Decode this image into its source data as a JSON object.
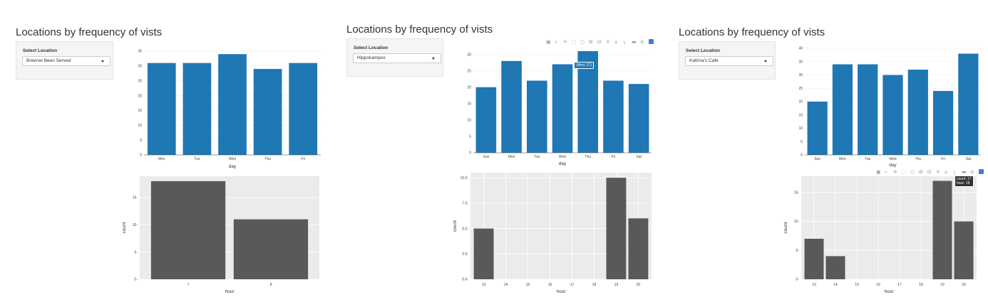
{
  "panels": [
    {
      "title": "Locations by frequency of vists",
      "select_label": "Select Location",
      "select_value": "Brew've Been Served"
    },
    {
      "title": "Locations by frequency of vists",
      "select_label": "Select Location",
      "select_value": "Hippokampos",
      "tooltip": "(Wed, 27)"
    },
    {
      "title": "Locations by frequency of vists",
      "select_label": "Select Location",
      "select_value": "Katrina's Cafe",
      "tooltip_line1": "count: 17",
      "tooltip_line2": "hour: 19"
    }
  ],
  "modebar_icons": [
    "camera-icon",
    "zoom-icon",
    "pan-icon",
    "box-select-icon",
    "lasso-icon",
    "zoom-in-icon",
    "zoom-out-icon",
    "autoscale-icon",
    "reset-axes-icon",
    "spike-lines-icon",
    "hover-closest-icon",
    "hover-compare-icon",
    "plotly-logo-icon"
  ],
  "colors": {
    "bar_blue": "#1f77b4",
    "bar_gray": "#595959",
    "panel_bg": "#ebebeb"
  },
  "chart_data": [
    {
      "type": "bar",
      "categories": [
        "Mon",
        "Tue",
        "Wed",
        "Thu",
        "Fri"
      ],
      "values": [
        31,
        31,
        34,
        29,
        31
      ],
      "xlabel": "day",
      "ylabel": "",
      "ylim": [
        0,
        35
      ],
      "yticks": [
        0,
        5,
        10,
        15,
        20,
        25,
        30,
        35
      ],
      "grid": true
    },
    {
      "type": "bar",
      "categories": [
        "7",
        "8"
      ],
      "values": [
        18,
        11
      ],
      "xlabel": "hour",
      "ylabel": "count",
      "ylim": [
        0,
        18.9
      ],
      "yticks": [
        0,
        5,
        10,
        15
      ],
      "grid": true
    },
    {
      "type": "bar",
      "categories": [
        "Sun",
        "Mon",
        "Tue",
        "Wed",
        "Thu",
        "Fri",
        "Sat"
      ],
      "values": [
        20,
        28,
        22,
        27,
        31,
        22,
        21
      ],
      "xlabel": "day",
      "ylabel": "",
      "ylim": [
        0,
        31
      ],
      "yticks": [
        0,
        5,
        10,
        15,
        20,
        25,
        30
      ],
      "grid": true
    },
    {
      "type": "bar",
      "x": [
        13,
        19,
        20
      ],
      "values": [
        5,
        10,
        6
      ],
      "xticks": [
        13,
        14,
        15,
        16,
        17,
        18,
        19,
        20
      ],
      "xlabel": "hour",
      "ylabel": "count",
      "ylim": [
        0,
        10.5
      ],
      "yticks": [
        0,
        2.5,
        5,
        7.5,
        10
      ],
      "ytick_labels": [
        "0.0",
        "2.5",
        "5.0",
        "7.5",
        "10.0"
      ],
      "grid": true
    },
    {
      "type": "bar",
      "categories": [
        "Sun",
        "Mon",
        "Tue",
        "Wed",
        "Thu",
        "Fri",
        "Sat"
      ],
      "values": [
        20,
        34,
        34,
        30,
        32,
        24,
        38
      ],
      "xlabel": "day",
      "ylabel": "",
      "ylim": [
        0,
        40
      ],
      "yticks": [
        0,
        5,
        10,
        15,
        20,
        25,
        30,
        35,
        40
      ],
      "grid": true
    },
    {
      "type": "bar",
      "x": [
        13,
        14,
        19,
        20
      ],
      "values": [
        7,
        4,
        17,
        10
      ],
      "xticks": [
        13,
        14,
        15,
        16,
        17,
        18,
        19,
        20
      ],
      "xlabel": "hour",
      "ylabel": "count",
      "ylim": [
        0,
        17.8
      ],
      "yticks": [
        0,
        5,
        10,
        15
      ],
      "grid": true
    }
  ]
}
